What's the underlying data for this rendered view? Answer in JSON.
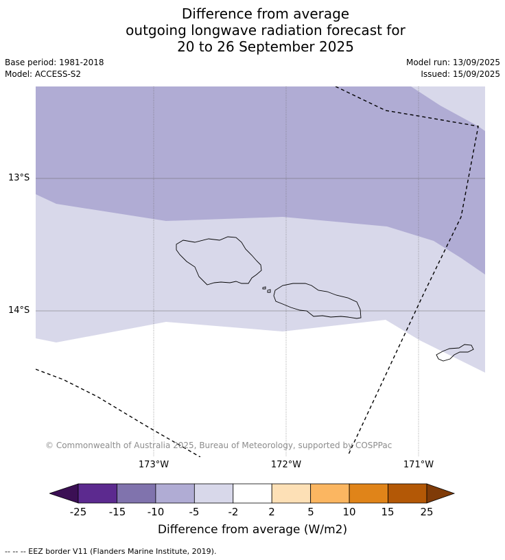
{
  "title": {
    "line1": "Difference from average",
    "line2": "outgoing longwave radiation forecast for",
    "line3": "20 to 26 September 2025"
  },
  "meta": {
    "base_period": "Base period: 1981-2018",
    "model": "Model: ACCESS-S2",
    "model_run": "Model run: 13/09/2025",
    "issued": "Issued: 15/09/2025"
  },
  "map": {
    "lat_labels": [
      "13°S",
      "14°S"
    ],
    "lon_labels": [
      "173°W",
      "172°W",
      "171°W"
    ],
    "copyright": "© Commonwealth of Australia 2025, Bureau of Meteorology, supported by COSPPac",
    "eez_line_style": "dashed",
    "shading": [
      {
        "range": "-10 to -5",
        "color": "#b0acd4"
      },
      {
        "range": "-5 to -2",
        "color": "#d8d8ea"
      },
      {
        "range": "-2 to 2",
        "color": "#ffffff"
      }
    ]
  },
  "colorbar": {
    "ticks": [
      "-25",
      "-15",
      "-10",
      "-5",
      "-2",
      "2",
      "5",
      "10",
      "15",
      "25"
    ],
    "colors": [
      "#3b0f54",
      "#5c2a8f",
      "#8073ad",
      "#b0acd4",
      "#d8d8ea",
      "#ffffff",
      "#fde0b6",
      "#fbb661",
      "#e08419",
      "#b35806",
      "#7f3b08"
    ],
    "label": "Difference from average (W/m2)"
  },
  "legend_note": "-- -- -- EEZ border V11 (Flanders Marine Institute, 2019)."
}
